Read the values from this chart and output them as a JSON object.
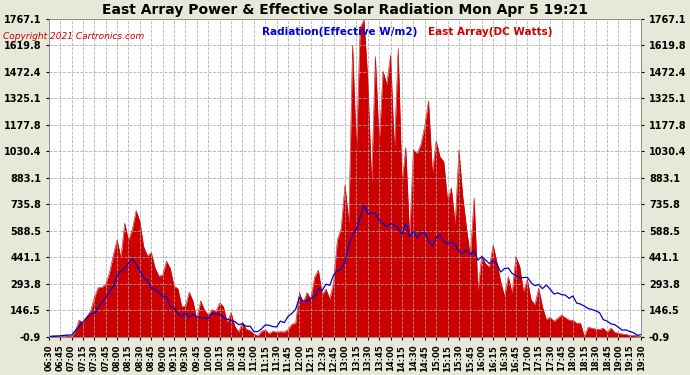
{
  "title": "East Array Power & Effective Solar Radiation Mon Apr 5 19:21",
  "copyright": "Copyright 2021 Cartronics.com",
  "legend_radiation": "Radiation(Effective W/m2)",
  "legend_east": "East Array(DC Watts)",
  "yticks": [
    1767.1,
    1619.8,
    1472.4,
    1325.1,
    1177.8,
    1030.4,
    883.1,
    735.8,
    588.5,
    441.1,
    293.8,
    146.5,
    -0.9
  ],
  "ymin": -0.9,
  "ymax": 1767.1,
  "bg_color": "#e8e8d8",
  "plot_bg": "#ffffff",
  "grid_color": "#cccccc",
  "radiation_color": "#0000cc",
  "east_color": "#cc0000",
  "fill_color": "#cc0000",
  "title_color": "#000000",
  "copyright_color": "#cc0000"
}
